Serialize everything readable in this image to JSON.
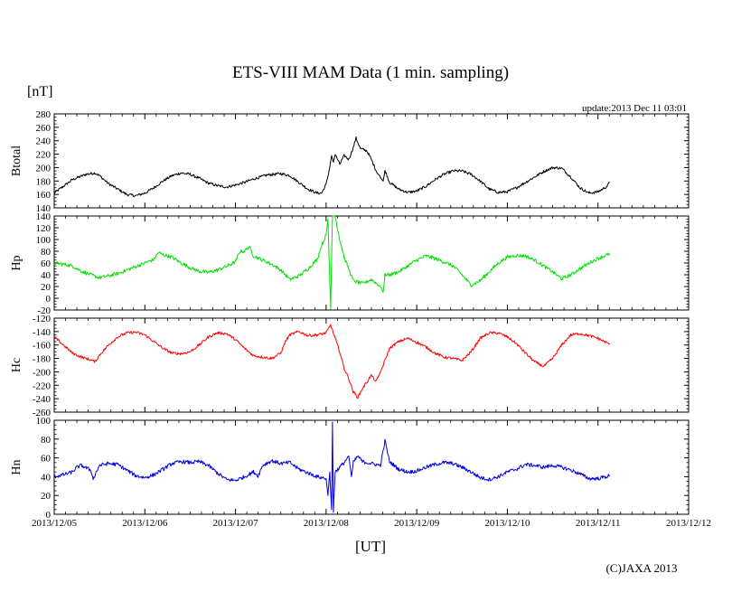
{
  "chart_data": {
    "type": "line",
    "title": "ETS-VIII MAM Data (1 min. sampling)",
    "unit_label": "[nT]",
    "update_text": "update:2013 Dec 11 03:01",
    "xlabel": "[UT]",
    "copyright": "(C)JAXA 2013",
    "x_ticks": [
      "2013/12/05",
      "2013/12/06",
      "2013/12/07",
      "2013/12/08",
      "2013/12/09",
      "2013/12/10",
      "2013/12/11",
      "2013/12/12"
    ],
    "x_range_days": [
      0,
      7
    ],
    "panels": [
      {
        "name": "Btotal",
        "color": "#000000",
        "ylim": [
          140,
          280
        ],
        "yticks": [
          140,
          160,
          180,
          200,
          220,
          240,
          260,
          280
        ],
        "noise": 2.0,
        "points": [
          [
            0,
            162
          ],
          [
            0.1,
            172
          ],
          [
            0.2,
            182
          ],
          [
            0.35,
            190
          ],
          [
            0.45,
            192
          ],
          [
            0.5,
            188
          ],
          [
            0.6,
            176
          ],
          [
            0.7,
            168
          ],
          [
            0.8,
            160
          ],
          [
            0.9,
            158
          ],
          [
            1.0,
            162
          ],
          [
            1.1,
            170
          ],
          [
            1.2,
            180
          ],
          [
            1.3,
            188
          ],
          [
            1.4,
            192
          ],
          [
            1.5,
            190
          ],
          [
            1.6,
            184
          ],
          [
            1.7,
            177
          ],
          [
            1.8,
            173
          ],
          [
            1.9,
            171
          ],
          [
            2.0,
            174
          ],
          [
            2.1,
            178
          ],
          [
            2.2,
            183
          ],
          [
            2.35,
            189
          ],
          [
            2.5,
            191
          ],
          [
            2.6,
            188
          ],
          [
            2.7,
            178
          ],
          [
            2.8,
            168
          ],
          [
            2.9,
            162
          ],
          [
            2.95,
            162
          ],
          [
            3.0,
            175
          ],
          [
            3.04,
            200
          ],
          [
            3.06,
            218
          ],
          [
            3.08,
            208
          ],
          [
            3.1,
            220
          ],
          [
            3.15,
            205
          ],
          [
            3.2,
            218
          ],
          [
            3.25,
            212
          ],
          [
            3.3,
            230
          ],
          [
            3.33,
            244
          ],
          [
            3.38,
            228
          ],
          [
            3.45,
            225
          ],
          [
            3.5,
            212
          ],
          [
            3.55,
            196
          ],
          [
            3.6,
            185
          ],
          [
            3.63,
            180
          ],
          [
            3.65,
            196
          ],
          [
            3.7,
            178
          ],
          [
            3.8,
            168
          ],
          [
            3.9,
            163
          ],
          [
            4.0,
            165
          ],
          [
            4.1,
            172
          ],
          [
            4.2,
            182
          ],
          [
            4.3,
            190
          ],
          [
            4.4,
            195
          ],
          [
            4.5,
            195
          ],
          [
            4.6,
            190
          ],
          [
            4.7,
            180
          ],
          [
            4.8,
            168
          ],
          [
            4.9,
            163
          ],
          [
            5.0,
            164
          ],
          [
            5.1,
            170
          ],
          [
            5.2,
            178
          ],
          [
            5.3,
            186
          ],
          [
            5.4,
            194
          ],
          [
            5.5,
            200
          ],
          [
            5.6,
            199
          ],
          [
            5.7,
            186
          ],
          [
            5.8,
            170
          ],
          [
            5.9,
            162
          ],
          [
            6.0,
            164
          ],
          [
            6.1,
            172
          ],
          [
            6.13,
            178
          ]
        ]
      },
      {
        "name": "Hp",
        "color": "#00e000",
        "ylim": [
          -20,
          140
        ],
        "yticks": [
          -20,
          0,
          20,
          40,
          60,
          80,
          100,
          120,
          140
        ],
        "noise": 3.0,
        "points": [
          [
            0,
            60
          ],
          [
            0.1,
            58
          ],
          [
            0.2,
            55
          ],
          [
            0.3,
            46
          ],
          [
            0.4,
            40
          ],
          [
            0.5,
            35
          ],
          [
            0.6,
            38
          ],
          [
            0.7,
            42
          ],
          [
            0.8,
            48
          ],
          [
            0.9,
            54
          ],
          [
            1.0,
            60
          ],
          [
            1.1,
            66
          ],
          [
            1.15,
            78
          ],
          [
            1.2,
            74
          ],
          [
            1.3,
            70
          ],
          [
            1.4,
            60
          ],
          [
            1.5,
            52
          ],
          [
            1.6,
            46
          ],
          [
            1.7,
            44
          ],
          [
            1.8,
            48
          ],
          [
            1.9,
            54
          ],
          [
            2.0,
            62
          ],
          [
            2.05,
            80
          ],
          [
            2.1,
            80
          ],
          [
            2.15,
            88
          ],
          [
            2.2,
            72
          ],
          [
            2.3,
            65
          ],
          [
            2.4,
            58
          ],
          [
            2.5,
            48
          ],
          [
            2.6,
            32
          ],
          [
            2.7,
            38
          ],
          [
            2.8,
            50
          ],
          [
            2.9,
            66
          ],
          [
            2.95,
            90
          ],
          [
            3.0,
            108
          ],
          [
            3.02,
            135
          ],
          [
            3.05,
            -18
          ],
          [
            3.07,
            140
          ],
          [
            3.1,
            140
          ],
          [
            3.15,
            100
          ],
          [
            3.2,
            70
          ],
          [
            3.25,
            50
          ],
          [
            3.3,
            30
          ],
          [
            3.4,
            25
          ],
          [
            3.5,
            32
          ],
          [
            3.6,
            20
          ],
          [
            3.63,
            10
          ],
          [
            3.65,
            40
          ],
          [
            3.7,
            40
          ],
          [
            3.8,
            45
          ],
          [
            3.9,
            55
          ],
          [
            4.0,
            65
          ],
          [
            4.1,
            72
          ],
          [
            4.2,
            68
          ],
          [
            4.3,
            62
          ],
          [
            4.4,
            55
          ],
          [
            4.5,
            40
          ],
          [
            4.6,
            22
          ],
          [
            4.7,
            30
          ],
          [
            4.8,
            45
          ],
          [
            4.9,
            60
          ],
          [
            5.0,
            70
          ],
          [
            5.1,
            73
          ],
          [
            5.2,
            72
          ],
          [
            5.3,
            65
          ],
          [
            5.4,
            55
          ],
          [
            5.5,
            45
          ],
          [
            5.6,
            33
          ],
          [
            5.7,
            40
          ],
          [
            5.8,
            50
          ],
          [
            5.9,
            60
          ],
          [
            6.0,
            68
          ],
          [
            6.1,
            74
          ],
          [
            6.13,
            75
          ]
        ]
      },
      {
        "name": "Hc",
        "color": "#ff0000",
        "ylim": [
          -260,
          -120
        ],
        "yticks": [
          -260,
          -240,
          -220,
          -200,
          -180,
          -160,
          -140,
          -120
        ],
        "noise": 2.0,
        "points": [
          [
            0,
            -148
          ],
          [
            0.1,
            -160
          ],
          [
            0.2,
            -172
          ],
          [
            0.3,
            -178
          ],
          [
            0.4,
            -182
          ],
          [
            0.45,
            -185
          ],
          [
            0.5,
            -175
          ],
          [
            0.6,
            -160
          ],
          [
            0.7,
            -148
          ],
          [
            0.8,
            -142
          ],
          [
            0.9,
            -141
          ],
          [
            1.0,
            -145
          ],
          [
            1.1,
            -155
          ],
          [
            1.2,
            -165
          ],
          [
            1.3,
            -172
          ],
          [
            1.4,
            -173
          ],
          [
            1.5,
            -170
          ],
          [
            1.6,
            -160
          ],
          [
            1.7,
            -148
          ],
          [
            1.8,
            -142
          ],
          [
            1.9,
            -143
          ],
          [
            2.0,
            -152
          ],
          [
            2.1,
            -165
          ],
          [
            2.2,
            -176
          ],
          [
            2.3,
            -178
          ],
          [
            2.4,
            -180
          ],
          [
            2.5,
            -172
          ],
          [
            2.55,
            -155
          ],
          [
            2.6,
            -145
          ],
          [
            2.7,
            -140
          ],
          [
            2.8,
            -146
          ],
          [
            2.9,
            -145
          ],
          [
            3.0,
            -142
          ],
          [
            3.05,
            -130
          ],
          [
            3.1,
            -150
          ],
          [
            3.15,
            -170
          ],
          [
            3.2,
            -195
          ],
          [
            3.25,
            -210
          ],
          [
            3.3,
            -230
          ],
          [
            3.35,
            -238
          ],
          [
            3.4,
            -225
          ],
          [
            3.45,
            -215
          ],
          [
            3.5,
            -205
          ],
          [
            3.55,
            -215
          ],
          [
            3.6,
            -200
          ],
          [
            3.63,
            -190
          ],
          [
            3.7,
            -165
          ],
          [
            3.8,
            -155
          ],
          [
            3.9,
            -150
          ],
          [
            4.0,
            -156
          ],
          [
            4.1,
            -163
          ],
          [
            4.2,
            -172
          ],
          [
            4.3,
            -178
          ],
          [
            4.4,
            -180
          ],
          [
            4.5,
            -183
          ],
          [
            4.6,
            -170
          ],
          [
            4.7,
            -150
          ],
          [
            4.8,
            -142
          ],
          [
            4.9,
            -142
          ],
          [
            5.0,
            -148
          ],
          [
            5.1,
            -158
          ],
          [
            5.2,
            -172
          ],
          [
            5.3,
            -185
          ],
          [
            5.4,
            -192
          ],
          [
            5.5,
            -180
          ],
          [
            5.6,
            -160
          ],
          [
            5.7,
            -145
          ],
          [
            5.8,
            -143
          ],
          [
            5.9,
            -146
          ],
          [
            6.0,
            -150
          ],
          [
            6.1,
            -157
          ],
          [
            6.13,
            -158
          ]
        ]
      },
      {
        "name": "Hn",
        "color": "#0000dd",
        "ylim": [
          0,
          100
        ],
        "yticks": [
          0,
          20,
          40,
          60,
          80,
          100
        ],
        "noise": 2.0,
        "points": [
          [
            0,
            40
          ],
          [
            0.1,
            42
          ],
          [
            0.2,
            45
          ],
          [
            0.25,
            50
          ],
          [
            0.3,
            52
          ],
          [
            0.4,
            47
          ],
          [
            0.43,
            38
          ],
          [
            0.5,
            52
          ],
          [
            0.6,
            54
          ],
          [
            0.7,
            53
          ],
          [
            0.8,
            47
          ],
          [
            0.9,
            41
          ],
          [
            1.0,
            39
          ],
          [
            1.1,
            42
          ],
          [
            1.2,
            48
          ],
          [
            1.3,
            54
          ],
          [
            1.4,
            56
          ],
          [
            1.5,
            55
          ],
          [
            1.6,
            56
          ],
          [
            1.7,
            52
          ],
          [
            1.8,
            44
          ],
          [
            1.9,
            37
          ],
          [
            2.0,
            36
          ],
          [
            2.1,
            40
          ],
          [
            2.2,
            45
          ],
          [
            2.25,
            41
          ],
          [
            2.3,
            52
          ],
          [
            2.4,
            57
          ],
          [
            2.5,
            54
          ],
          [
            2.6,
            55
          ],
          [
            2.7,
            48
          ],
          [
            2.8,
            44
          ],
          [
            2.9,
            40
          ],
          [
            3.0,
            38
          ],
          [
            3.02,
            20
          ],
          [
            3.04,
            45
          ],
          [
            3.06,
            5
          ],
          [
            3.07,
            98
          ],
          [
            3.08,
            2
          ],
          [
            3.1,
            45
          ],
          [
            3.15,
            50
          ],
          [
            3.2,
            55
          ],
          [
            3.25,
            62
          ],
          [
            3.28,
            40
          ],
          [
            3.3,
            55
          ],
          [
            3.35,
            62
          ],
          [
            3.4,
            56
          ],
          [
            3.5,
            54
          ],
          [
            3.6,
            52
          ],
          [
            3.65,
            78
          ],
          [
            3.7,
            56
          ],
          [
            3.8,
            48
          ],
          [
            3.9,
            45
          ],
          [
            4.0,
            46
          ],
          [
            4.1,
            50
          ],
          [
            4.2,
            53
          ],
          [
            4.3,
            55
          ],
          [
            4.4,
            54
          ],
          [
            4.5,
            50
          ],
          [
            4.6,
            45
          ],
          [
            4.7,
            39
          ],
          [
            4.8,
            37
          ],
          [
            4.9,
            40
          ],
          [
            5.0,
            45
          ],
          [
            5.1,
            48
          ],
          [
            5.2,
            53
          ],
          [
            5.3,
            52
          ],
          [
            5.4,
            50
          ],
          [
            5.5,
            52
          ],
          [
            5.6,
            50
          ],
          [
            5.7,
            47
          ],
          [
            5.8,
            43
          ],
          [
            5.9,
            38
          ],
          [
            6.0,
            38
          ],
          [
            6.13,
            41
          ]
        ]
      }
    ]
  }
}
